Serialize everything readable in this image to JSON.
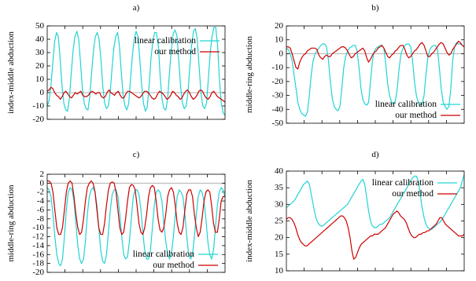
{
  "colors": {
    "linear": "#22d3d3",
    "ours": "#cc0000",
    "zero_line": "#b0b0b0"
  },
  "chart_data": [
    {
      "type": "line",
      "title": "a)",
      "ylabel": "index-middle abduction",
      "ylim": [
        -20,
        50
      ],
      "yticks": [
        -20,
        -10,
        0,
        10,
        20,
        30,
        40,
        50
      ],
      "legend_position": "top-right",
      "series": [
        {
          "name": "linear calibration",
          "color": "#22d3d3",
          "values": [
            -10,
            -6,
            5,
            22,
            38,
            45,
            42,
            25,
            5,
            -8,
            -13,
            -14,
            -4,
            15,
            32,
            42,
            46,
            40,
            22,
            3,
            -8,
            -12,
            -13,
            -3,
            15,
            32,
            42,
            45,
            40,
            25,
            5,
            -8,
            -12,
            -10,
            0,
            18,
            34,
            42,
            45,
            35,
            15,
            -2,
            -10,
            -13,
            -8,
            10,
            28,
            40,
            46,
            42,
            25,
            5,
            -8,
            -14,
            -11,
            5,
            25,
            38,
            45,
            45,
            35,
            12,
            -5,
            -12,
            -13,
            -5,
            15,
            32,
            44,
            47,
            43,
            25,
            5,
            -8,
            -12,
            -10,
            0,
            20,
            36,
            46,
            48,
            40,
            20,
            0,
            -10,
            -12,
            -8,
            10,
            30,
            42,
            49,
            49,
            35,
            10,
            -8,
            -15,
            -17
          ]
        },
        {
          "name": "our method",
          "color": "#cc0000",
          "values": [
            1,
            2,
            4,
            3,
            0,
            -2,
            -3,
            -5,
            -3,
            0,
            1,
            -1,
            -3,
            -4,
            -2,
            0,
            -1,
            0,
            1,
            -2,
            -3,
            -3,
            -2,
            0,
            1,
            0,
            -1,
            0,
            0,
            -3,
            -4,
            -3,
            0,
            2,
            0,
            -1,
            -2,
            0,
            1,
            -2,
            -4,
            -4,
            -1,
            1,
            1,
            0,
            -1,
            -2,
            -3,
            -4,
            -3,
            -1,
            1,
            1,
            0,
            -2,
            -4,
            -5,
            -4,
            -1,
            1,
            0,
            -1,
            -3,
            -5,
            -4,
            -2,
            1,
            0,
            -2,
            -3,
            -5,
            -4,
            -1,
            1,
            2,
            0,
            -3,
            -5,
            -4,
            -2,
            1,
            2,
            1,
            -2,
            -4,
            -5,
            -3,
            0,
            1,
            -1,
            -3,
            -4,
            -5,
            -6,
            -7
          ]
        }
      ]
    },
    {
      "type": "line",
      "title": "b)",
      "ylabel": "middle-ring abduction",
      "ylim": [
        -50,
        20
      ],
      "yticks": [
        -50,
        -40,
        -30,
        -20,
        -10,
        0,
        10,
        20
      ],
      "legend_position": "bottom-right",
      "series": [
        {
          "name": "linear calibration",
          "color": "#22d3d3",
          "values": [
            4,
            3,
            0,
            -5,
            -15,
            -25,
            -35,
            -40,
            -43,
            -44,
            -45,
            -42,
            -30,
            -15,
            -5,
            0,
            2,
            4,
            6,
            7,
            7,
            5,
            -5,
            -20,
            -32,
            -38,
            -40,
            -41,
            -38,
            -25,
            -10,
            -2,
            2,
            4,
            5,
            6,
            6,
            2,
            -10,
            -25,
            -33,
            -36,
            -37,
            -35,
            -20,
            -5,
            2,
            4,
            5,
            6,
            6,
            4,
            -8,
            -22,
            -30,
            -35,
            -36,
            -34,
            -25,
            -10,
            0,
            4,
            6,
            7,
            7,
            5,
            -5,
            -20,
            -30,
            -35,
            -37,
            -36,
            -30,
            -15,
            -3,
            3,
            5,
            6,
            6,
            3,
            -10,
            -25,
            -35,
            -38,
            -40,
            -38,
            -25,
            -5,
            5,
            8,
            7,
            7,
            6,
            5
          ]
        },
        {
          "name": "our method",
          "color": "#cc0000",
          "values": [
            5,
            5,
            4,
            0,
            -5,
            -10,
            -11,
            -6,
            -3,
            -1,
            0,
            2,
            3,
            4,
            4,
            4,
            3,
            -1,
            -3,
            -4,
            -2,
            -1,
            -2,
            -2,
            0,
            1,
            2,
            3,
            4,
            5,
            5,
            4,
            2,
            -1,
            -3,
            -2,
            0,
            1,
            2,
            3,
            4,
            2,
            -3,
            -6,
            -4,
            -1,
            1,
            2,
            4,
            5,
            6,
            4,
            1,
            -2,
            -3,
            -1,
            0,
            2,
            3,
            5,
            6,
            6,
            3,
            -1,
            -3,
            -2,
            0,
            2,
            3,
            5,
            7,
            8,
            6,
            2,
            -2,
            -2,
            0,
            1,
            3,
            5,
            7,
            8,
            7,
            4,
            1,
            -1,
            0,
            3,
            5,
            7,
            9,
            8,
            6,
            5
          ]
        }
      ]
    },
    {
      "type": "line",
      "title": "c)",
      "ylabel": "middle-ring abduction",
      "ylim": [
        -20,
        2
      ],
      "yticks": [
        -20,
        -18,
        -16,
        -14,
        -12,
        -10,
        -8,
        -6,
        -4,
        -2,
        0,
        2
      ],
      "legend_position": "bottom-right",
      "series": [
        {
          "name": "linear calibration",
          "color": "#22d3d3",
          "values": [
            -1,
            -1.5,
            -3,
            -7,
            -12,
            -16,
            -18,
            -18.5,
            -17,
            -12,
            -6,
            -2,
            -1,
            -1.5,
            -4,
            -9,
            -14,
            -17,
            -18,
            -17,
            -13,
            -7,
            -3,
            -1.5,
            -1,
            -2,
            -5,
            -10,
            -15,
            -17.5,
            -18,
            -16,
            -11,
            -6,
            -2.5,
            -1.5,
            -1.5,
            -3,
            -7,
            -12,
            -16,
            -17,
            -16.5,
            -13,
            -8,
            -3,
            -1.5,
            -1.5,
            -2.5,
            -6,
            -11,
            -15,
            -17,
            -17,
            -15,
            -10,
            -5,
            -2,
            -1.5,
            -2,
            -4,
            -9,
            -13,
            -16,
            -17,
            -15.5,
            -12,
            -7,
            -3,
            -1.5,
            -2,
            -3,
            -7,
            -12,
            -16,
            -17,
            -16,
            -12,
            -7,
            -3,
            -1.5,
            -2,
            -4,
            -8,
            -13,
            -16,
            -17,
            -15,
            -10,
            -5,
            -2,
            -1,
            -1.5,
            -3
          ]
        },
        {
          "name": "our method",
          "color": "#cc0000",
          "values": [
            0.5,
            0.5,
            0,
            -2,
            -6,
            -10,
            -11.5,
            -11.5,
            -10,
            -6,
            -2,
            0,
            0.5,
            0,
            -3,
            -7,
            -10,
            -11.5,
            -11,
            -8,
            -4,
            -1,
            0,
            0.5,
            0,
            -2,
            -6,
            -10,
            -11.5,
            -11.5,
            -9,
            -5,
            -1.5,
            0,
            0.3,
            0,
            -2,
            -6,
            -10,
            -11.5,
            -11,
            -8,
            -4,
            -1,
            -0.3,
            -0.5,
            -1.5,
            -5,
            -9,
            -11,
            -11.5,
            -10,
            -7,
            -3,
            -1,
            -0.5,
            -1,
            -4,
            -8,
            -10.5,
            -11,
            -10,
            -7,
            -3,
            -1.5,
            -1,
            -2,
            -5,
            -9,
            -11,
            -11.5,
            -10,
            -6,
            -2.5,
            -1.5,
            -1.5,
            -3,
            -7,
            -10,
            -12,
            -11,
            -8,
            -4,
            -2,
            -1.5,
            -2,
            -5,
            -9,
            -11,
            -11,
            -8,
            -4,
            -3,
            -3
          ]
        }
      ]
    },
    {
      "type": "line",
      "title": "d)",
      "ylabel": "index-middle abduction",
      "ylim": [
        10,
        40
      ],
      "yticks": [
        10,
        15,
        20,
        25,
        30,
        35,
        40
      ],
      "legend_position": "top-right",
      "series": [
        {
          "name": "linear calibration",
          "color": "#22d3d3",
          "values": [
            29,
            29.5,
            30,
            30.5,
            31,
            32,
            33,
            34,
            35,
            36,
            36.5,
            37,
            36,
            33,
            30,
            27,
            25,
            24,
            23.5,
            23.5,
            24,
            24.5,
            25,
            25.5,
            26,
            26.5,
            27,
            27.5,
            28,
            28.5,
            29,
            29.5,
            30,
            31,
            32,
            33,
            34,
            35,
            36,
            37,
            37.5,
            36,
            32,
            28,
            25,
            23.5,
            23,
            23,
            23.5,
            24,
            24,
            24.5,
            25,
            25.5,
            26,
            27,
            28,
            29,
            30,
            31,
            32,
            33,
            34,
            35,
            36,
            37,
            38,
            38.5,
            38.5,
            37,
            33,
            29,
            26,
            24,
            23,
            22.5,
            22.5,
            23,
            23.5,
            24,
            24.5,
            25,
            26,
            27,
            28,
            29,
            30,
            31,
            32,
            33,
            34,
            35,
            37,
            39
          ]
        },
        {
          "name": "our method",
          "color": "#cc0000",
          "values": [
            25.5,
            26,
            26,
            25.5,
            24.5,
            23,
            21,
            19.5,
            18.5,
            18,
            17.5,
            17.5,
            18,
            18.5,
            19,
            19.5,
            20,
            20.5,
            21,
            21.5,
            22,
            22.5,
            23,
            23.5,
            24,
            24.5,
            25,
            25.5,
            26,
            26.5,
            26.5,
            26,
            25,
            23,
            20,
            16,
            13.5,
            14,
            15.5,
            17,
            18,
            18.5,
            19,
            19.5,
            20,
            20.5,
            20.5,
            21,
            21,
            21,
            21.5,
            22,
            22.5,
            23,
            24,
            25,
            26,
            27,
            27.5,
            28,
            27.5,
            26.5,
            26,
            25.5,
            24.5,
            23,
            21.5,
            20.5,
            20,
            20,
            20.5,
            21,
            21,
            21.5,
            21.5,
            22,
            22,
            22.5,
            23,
            23.5,
            24,
            25,
            26,
            26,
            25,
            24,
            23.5,
            23,
            22.5,
            22,
            21.5,
            21,
            20.5,
            20.5,
            20.5,
            21
          ]
        }
      ]
    }
  ]
}
